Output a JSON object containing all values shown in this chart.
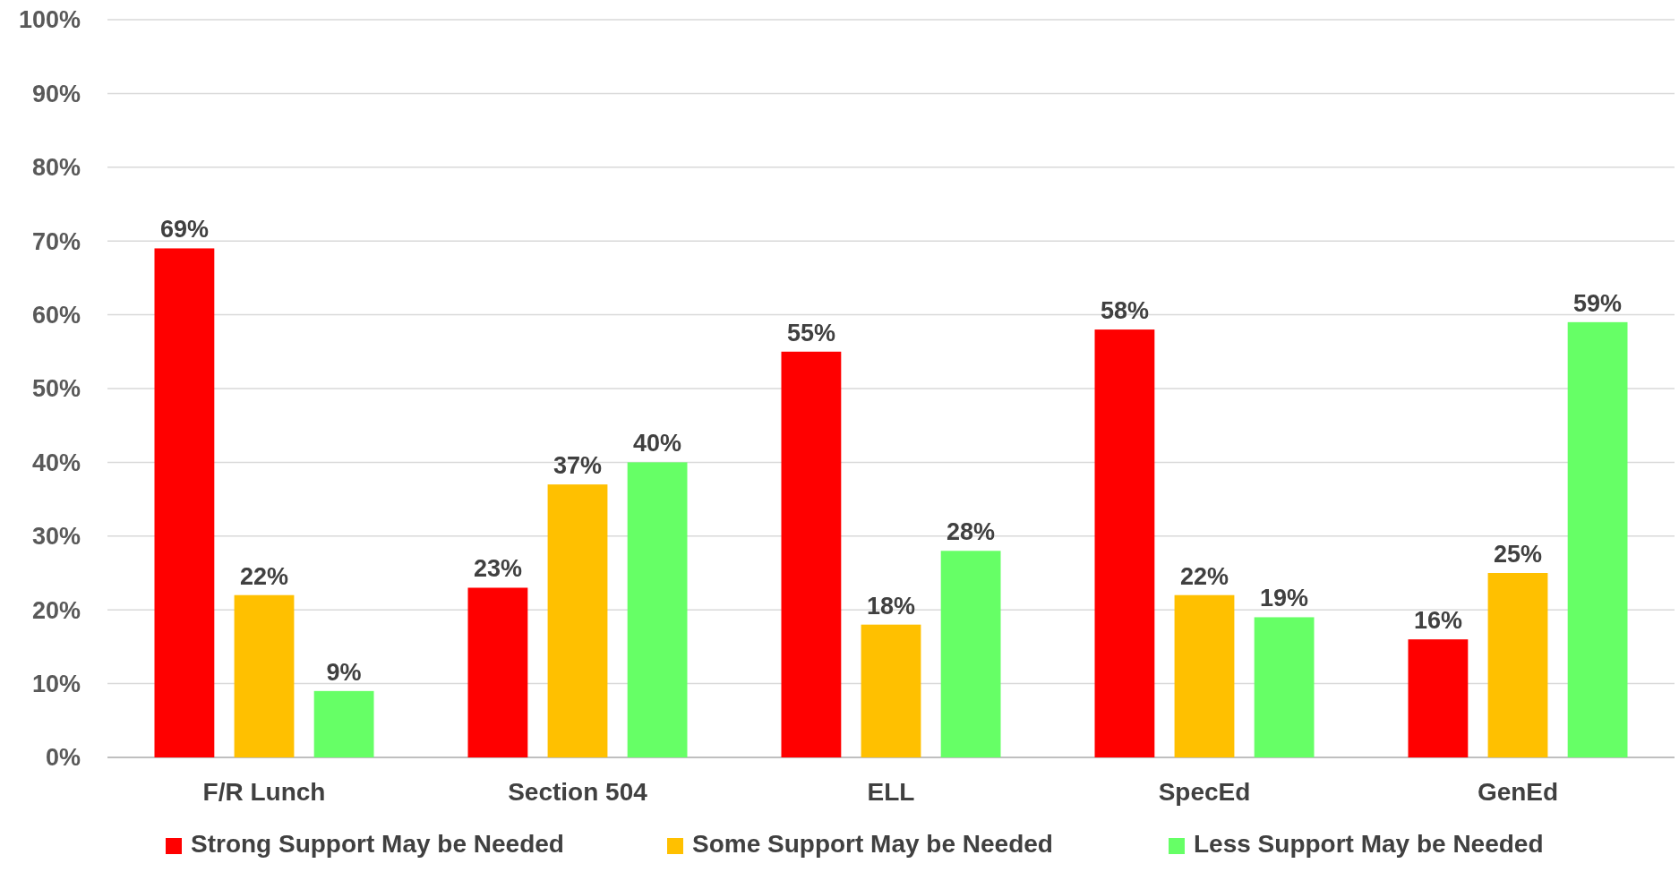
{
  "chart_data": {
    "type": "bar",
    "categories": [
      "F/R Lunch",
      "Section 504",
      "ELL",
      "SpecEd",
      "GenEd"
    ],
    "series": [
      {
        "name": "Strong Support May be Needed",
        "color": "#ff0000",
        "values": [
          69,
          23,
          55,
          58,
          16
        ],
        "value_labels": [
          "69%",
          "23%",
          "55%",
          "58%",
          "16%"
        ]
      },
      {
        "name": "Some Support May be Needed",
        "color": "#ffc000",
        "values": [
          22,
          37,
          18,
          22,
          25
        ],
        "value_labels": [
          "22%",
          "37%",
          "18%",
          "22%",
          "25%"
        ]
      },
      {
        "name": "Less Support May be Needed",
        "color": "#66ff66",
        "values": [
          9,
          40,
          28,
          19,
          59
        ],
        "value_labels": [
          "9%",
          "40%",
          "28%",
          "19%",
          "59%"
        ]
      }
    ],
    "ylim": [
      0,
      100
    ],
    "yticks": [
      {
        "value": 0,
        "label": "0%"
      },
      {
        "value": 10,
        "label": "10%"
      },
      {
        "value": 20,
        "label": "20%"
      },
      {
        "value": 30,
        "label": "30%"
      },
      {
        "value": 40,
        "label": "40%"
      },
      {
        "value": 50,
        "label": "50%"
      },
      {
        "value": 60,
        "label": "60%"
      },
      {
        "value": 70,
        "label": "70%"
      },
      {
        "value": 80,
        "label": "80%"
      },
      {
        "value": 90,
        "label": "90%"
      },
      {
        "value": 100,
        "label": "100%"
      }
    ],
    "grid": "y",
    "legend": "bottom"
  }
}
